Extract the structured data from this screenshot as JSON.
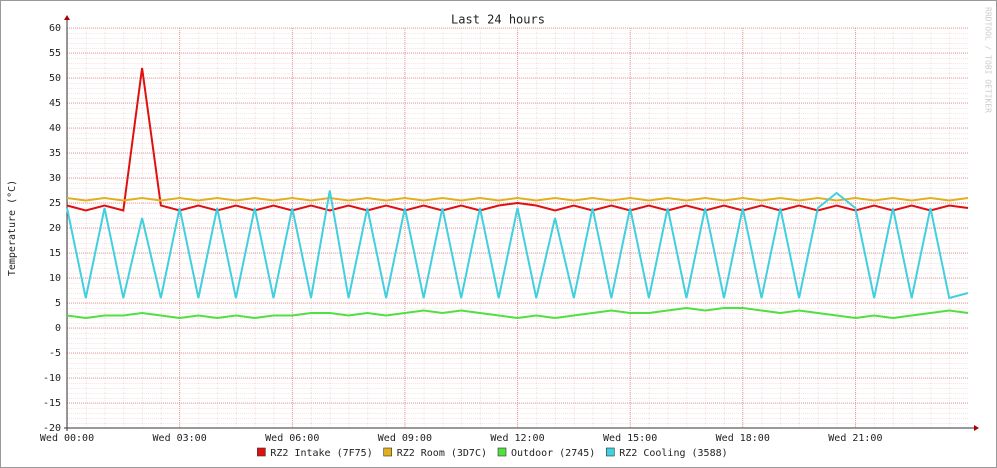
{
  "chart_data": {
    "type": "line",
    "title": "Last 24 hours",
    "y_label": "Temperature (°C)",
    "watermark": "RRDTOOL / TOBI OETIKER",
    "x": [
      0,
      0.5,
      1,
      1.5,
      2,
      2.5,
      3,
      3.5,
      4,
      4.5,
      5,
      5.5,
      6,
      6.5,
      7,
      7.5,
      8,
      8.5,
      9,
      9.5,
      10,
      10.5,
      11,
      11.5,
      12,
      12.5,
      13,
      13.5,
      14,
      14.5,
      15,
      15.5,
      16,
      16.5,
      17,
      17.5,
      18,
      18.5,
      19,
      19.5,
      20,
      20.5,
      21,
      21.5,
      22,
      22.5,
      23,
      23.5,
      24
    ],
    "xlim": [
      0,
      24
    ],
    "xticks": [
      {
        "value": 0,
        "label": "Wed 00:00"
      },
      {
        "value": 3,
        "label": "Wed 03:00"
      },
      {
        "value": 6,
        "label": "Wed 06:00"
      },
      {
        "value": 9,
        "label": "Wed 09:00"
      },
      {
        "value": 12,
        "label": "Wed 12:00"
      },
      {
        "value": 15,
        "label": "Wed 15:00"
      },
      {
        "value": 18,
        "label": "Wed 18:00"
      },
      {
        "value": 21,
        "label": "Wed 21:00"
      }
    ],
    "ylim": [
      -20,
      60
    ],
    "yticks": [
      -20,
      -15,
      -10,
      -5,
      0,
      5,
      10,
      15,
      20,
      25,
      30,
      35,
      40,
      45,
      50,
      55,
      60
    ],
    "grid": true,
    "series": [
      {
        "name": "RZ2 Intake (7F75)",
        "color": "#e01010",
        "values": [
          24.5,
          23.5,
          24.5,
          23.5,
          52,
          24.5,
          23.5,
          24.5,
          23.5,
          24.5,
          23.5,
          24.5,
          23.5,
          24.5,
          23.5,
          24.5,
          23.5,
          24.5,
          23.5,
          24.5,
          23.5,
          24.5,
          23.5,
          24.5,
          25,
          24.5,
          23.5,
          24.5,
          23.5,
          24.5,
          23.5,
          24.5,
          23.5,
          24.5,
          23.5,
          24.5,
          23.5,
          24.5,
          23.5,
          24.5,
          23.5,
          24.5,
          23.5,
          24.5,
          23.5,
          24.5,
          23.5,
          24.5,
          24
        ]
      },
      {
        "name": "RZ2 Room (3D7C)",
        "color": "#e0b020",
        "values": [
          26,
          25.5,
          26,
          25.5,
          26,
          25.5,
          26,
          25.5,
          26,
          25.5,
          26,
          25.5,
          26,
          25.5,
          26,
          25.5,
          26,
          25.5,
          26,
          25.5,
          26,
          25.5,
          26,
          25.5,
          26,
          25.5,
          26,
          25.5,
          26,
          25.5,
          26,
          25.5,
          26,
          25.5,
          26,
          25.5,
          26,
          25.5,
          26,
          25.5,
          26,
          25.5,
          26,
          25.5,
          26,
          25.5,
          26,
          25.5,
          26
        ]
      },
      {
        "name": "Outdoor (2745)",
        "color": "#50e040",
        "values": [
          2.5,
          2,
          2.5,
          2.5,
          3,
          2.5,
          2,
          2.5,
          2,
          2.5,
          2,
          2.5,
          2.5,
          3,
          3,
          2.5,
          3,
          2.5,
          3,
          3.5,
          3,
          3.5,
          3,
          2.5,
          2,
          2.5,
          2,
          2.5,
          3,
          3.5,
          3,
          3,
          3.5,
          4,
          3.5,
          4,
          4,
          3.5,
          3,
          3.5,
          3,
          2.5,
          2,
          2.5,
          2,
          2.5,
          3,
          3.5,
          3
        ]
      },
      {
        "name": "RZ2 Cooling (3588)",
        "color": "#40d0e0",
        "values": [
          24,
          6,
          24,
          6,
          22,
          6,
          24,
          6,
          24,
          6,
          24,
          6,
          24,
          6,
          27.5,
          6,
          24,
          6,
          24,
          6,
          24,
          6,
          24,
          6,
          24,
          6,
          22,
          6,
          24,
          6,
          24,
          6,
          24,
          6,
          24,
          6,
          24,
          6,
          24,
          6,
          24,
          27,
          24,
          6,
          24,
          6,
          24,
          6,
          7
        ]
      }
    ]
  }
}
